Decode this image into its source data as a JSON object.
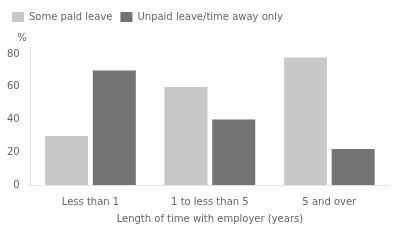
{
  "chart_data": {
    "type": "bar",
    "categories": [
      "Less than 1",
      "1 to less than 5",
      "5 and over"
    ],
    "series": [
      {
        "name": "Some paid leave",
        "color": "#c8c8c8",
        "values": [
          30,
          60,
          78
        ]
      },
      {
        "name": "Unpaid leave/time away only",
        "color": "#737373",
        "values": [
          70,
          40,
          22
        ]
      }
    ],
    "xlabel": "Length of time with employer (years)",
    "ylabel": "%",
    "ylim": [
      0,
      85
    ],
    "yticks": [
      0,
      20,
      40,
      60,
      80
    ],
    "grid": false,
    "legend": "upper left"
  }
}
